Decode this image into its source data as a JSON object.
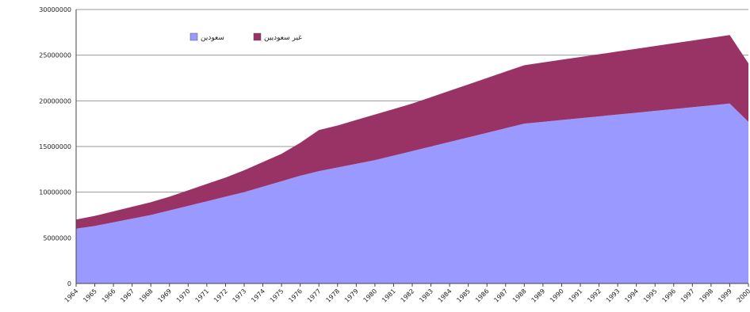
{
  "chart_data": {
    "type": "area",
    "stacked": true,
    "title": "",
    "xlabel": "",
    "ylabel": "",
    "ylim": [
      0,
      30000000
    ],
    "yticks": [
      "30000000",
      "25000000",
      "20000000",
      "15000000",
      "10000000",
      "5000000",
      "0"
    ],
    "grid": "horizontal",
    "legend_position": "top-left",
    "x": [
      "1964",
      "1965",
      "1966",
      "1967",
      "1968",
      "1969",
      "1970",
      "1971",
      "1972",
      "1973",
      "1974",
      "1975",
      "1976",
      "1977",
      "1978",
      "1979",
      "1980",
      "1981",
      "1982",
      "1983",
      "1984",
      "1985",
      "1986",
      "1987",
      "1988",
      "1989",
      "1990",
      "1991",
      "1992",
      "1993",
      "1994",
      "1995",
      "1996",
      "1997",
      "1998",
      "1999",
      "2000"
    ],
    "series": [
      {
        "name": "سعودين",
        "color": "#9999ff",
        "values": [
          6000000,
          6300000,
          6700000,
          7100000,
          7500000,
          8000000,
          8500000,
          9000000,
          9500000,
          10000000,
          10600000,
          11200000,
          11800000,
          12300000,
          12700000,
          13100000,
          13500000,
          14000000,
          14500000,
          15000000,
          15500000,
          16000000,
          16500000,
          17000000,
          17500000,
          17700000,
          17900000,
          18100000,
          18300000,
          18500000,
          18700000,
          18900000,
          19100000,
          19300000,
          19500000,
          19700000,
          17700000
        ]
      },
      {
        "name": "غير سعوديين",
        "color": "#993366",
        "values": [
          1000000,
          1100000,
          1200000,
          1300000,
          1400000,
          1500000,
          1700000,
          1900000,
          2100000,
          2400000,
          2700000,
          3000000,
          3600000,
          4500000,
          4600000,
          4800000,
          5000000,
          5100000,
          5200000,
          5400000,
          5600000,
          5800000,
          6000000,
          6200000,
          6400000,
          6500000,
          6600000,
          6700000,
          6800000,
          6900000,
          7000000,
          7100000,
          7200000,
          7300000,
          7400000,
          7500000,
          6400000
        ]
      }
    ]
  }
}
